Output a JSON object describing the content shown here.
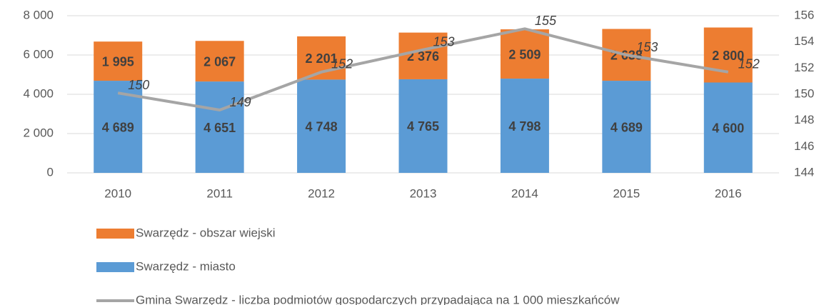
{
  "chart_data": {
    "type": "bar",
    "stacked": true,
    "categories": [
      "2010",
      "2011",
      "2012",
      "2013",
      "2014",
      "2015",
      "2016"
    ],
    "series": [
      {
        "name": "Swarzędz - miasto",
        "color": "#5b9bd5",
        "values": [
          4689,
          4651,
          4748,
          4765,
          4798,
          4689,
          4600
        ],
        "value_labels": [
          "4 689",
          "4 651",
          "4 748",
          "4 765",
          "4 798",
          "4 689",
          "4 600"
        ]
      },
      {
        "name": "Swarzędz - obszar wiejski",
        "color": "#ed7d31",
        "values": [
          1995,
          2067,
          2201,
          2376,
          2509,
          2638,
          2800
        ],
        "value_labels": [
          "1 995",
          "2 067",
          "2 201",
          "2 376",
          "2 509",
          "2 638",
          "2 800"
        ]
      },
      {
        "name": "Gmina Swarzędz - liczba podmiotów gospodarczych przypadająca na 1 000 mieszkańców",
        "type": "line",
        "axis": "y2",
        "color": "#a5a5a5",
        "values": [
          150.1,
          148.8,
          151.7,
          153.4,
          155.0,
          153.0,
          151.7
        ],
        "value_labels": [
          "150",
          "149",
          "152",
          "153",
          "155",
          "153",
          "152"
        ]
      }
    ],
    "ylim": [
      0,
      8000
    ],
    "yticks": [
      0,
      {
        "value": 2000,
        "label": "2 000"
      },
      {
        "value": 4000,
        "label": "4 000"
      },
      {
        "value": 6000,
        "label": "6 000"
      },
      {
        "value": 8000,
        "label": "8 000"
      }
    ],
    "y2lim": [
      144,
      156
    ],
    "y2ticks": [
      144,
      146,
      148,
      150,
      152,
      154,
      156
    ],
    "grid": true,
    "legend": "bottom"
  }
}
